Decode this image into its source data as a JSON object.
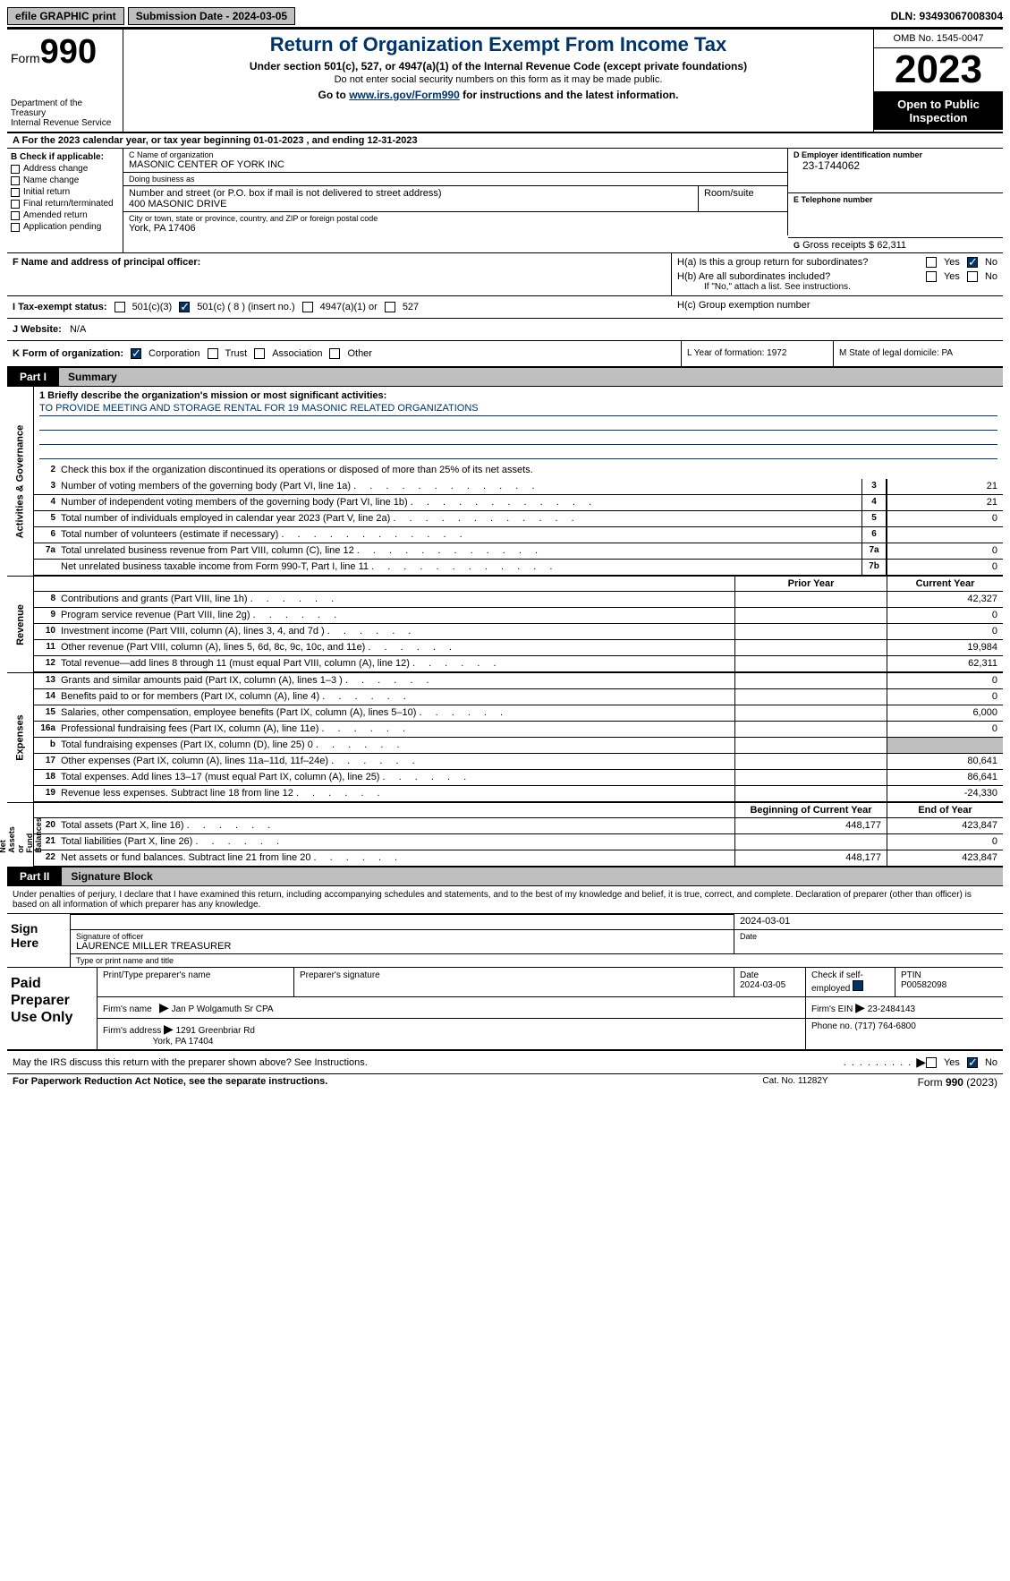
{
  "topbar": {
    "efile": "efile GRAPHIC print",
    "submission": "Submission Date - 2024-03-05",
    "dln": "DLN: 93493067008304"
  },
  "header": {
    "form_prefix": "Form",
    "form_number": "990",
    "dept": "Department of the Treasury\nInternal Revenue Service",
    "title": "Return of Organization Exempt From Income Tax",
    "sub": "Under section 501(c), 527, or 4947(a)(1) of the Internal Revenue Code (except private foundations)",
    "sub2": "Do not enter social security numbers on this form as it may be made public.",
    "sub3_pre": "Go to ",
    "sub3_link": "www.irs.gov/Form990",
    "sub3_post": " for instructions and the latest information.",
    "omb": "OMB No. 1545-0047",
    "year": "2023",
    "open": "Open to Public Inspection"
  },
  "sectionA": "A For the 2023 calendar year, or tax year beginning 01-01-2023    , and ending 12-31-2023",
  "sectionB": {
    "label": "B Check if applicable:",
    "items": [
      "Address change",
      "Name change",
      "Initial return",
      "Final return/terminated",
      "Amended return",
      "Application pending"
    ]
  },
  "sectionC": {
    "name_label": "C Name of organization",
    "name": "MASONIC CENTER OF YORK INC",
    "dba_label": "Doing business as",
    "dba": "",
    "street_label": "Number and street (or P.O. box if mail is not delivered to street address)",
    "street": "400 MASONIC DRIVE",
    "room_label": "Room/suite",
    "city_label": "City or town, state or province, country, and ZIP or foreign postal code",
    "city": "York, PA   17406"
  },
  "sectionD": {
    "label": "D Employer identification number",
    "value": "23-1744062"
  },
  "sectionE": {
    "label": "E Telephone number",
    "value": ""
  },
  "sectionG": {
    "label": "G",
    "text": "Gross receipts $ 62,311"
  },
  "sectionF": {
    "label": "F  Name and address of principal officer:",
    "value": ""
  },
  "sectionH": {
    "a": "H(a)  Is this a group return for subordinates?",
    "b": "H(b)  Are all subordinates included?",
    "b_note": "If \"No,\" attach a list. See instructions.",
    "c": "H(c)  Group exemption number"
  },
  "sectionI": {
    "label": "I   Tax-exempt status:",
    "opts": [
      "501(c)(3)",
      "501(c) ( 8 ) (insert no.)",
      "4947(a)(1) or",
      "527"
    ]
  },
  "sectionJ": {
    "label": "J   Website:",
    "value": "N/A"
  },
  "sectionK": {
    "label": "K Form of organization:",
    "opts": [
      "Corporation",
      "Trust",
      "Association",
      "Other"
    ]
  },
  "sectionL": "L Year of formation: 1972",
  "sectionM": "M State of legal domicile: PA",
  "part1": {
    "tab": "Part I",
    "title": "Summary"
  },
  "mission": {
    "q": "1   Briefly describe the organization's mission or most significant activities:",
    "text": "TO PROVIDE MEETING AND STORAGE RENTAL FOR 19 MASONIC RELATED ORGANIZATIONS"
  },
  "line2": "Check this box      if the organization discontinued its operations or disposed of more than 25% of its net assets.",
  "governance": [
    {
      "n": "3",
      "d": "Number of voting members of the governing body (Part VI, line 1a)",
      "b": "3",
      "v": "21"
    },
    {
      "n": "4",
      "d": "Number of independent voting members of the governing body (Part VI, line 1b)",
      "b": "4",
      "v": "21"
    },
    {
      "n": "5",
      "d": "Total number of individuals employed in calendar year 2023 (Part V, line 2a)",
      "b": "5",
      "v": "0"
    },
    {
      "n": "6",
      "d": "Total number of volunteers (estimate if necessary)",
      "b": "6",
      "v": ""
    },
    {
      "n": "7a",
      "d": "Total unrelated business revenue from Part VIII, column (C), line 12",
      "b": "7a",
      "v": "0"
    },
    {
      "n": "",
      "d": "Net unrelated business taxable income from Form 990-T, Part I, line 11",
      "b": "7b",
      "v": "0"
    }
  ],
  "revenue_hdr": {
    "prior": "Prior Year",
    "curr": "Current Year"
  },
  "revenue": [
    {
      "n": "8",
      "d": "Contributions and grants (Part VIII, line 1h)",
      "p": "",
      "c": "42,327"
    },
    {
      "n": "9",
      "d": "Program service revenue (Part VIII, line 2g)",
      "p": "",
      "c": "0"
    },
    {
      "n": "10",
      "d": "Investment income (Part VIII, column (A), lines 3, 4, and 7d )",
      "p": "",
      "c": "0"
    },
    {
      "n": "11",
      "d": "Other revenue (Part VIII, column (A), lines 5, 6d, 8c, 9c, 10c, and 11e)",
      "p": "",
      "c": "19,984"
    },
    {
      "n": "12",
      "d": "Total revenue—add lines 8 through 11 (must equal Part VIII, column (A), line 12)",
      "p": "",
      "c": "62,311"
    }
  ],
  "expenses": [
    {
      "n": "13",
      "d": "Grants and similar amounts paid (Part IX, column (A), lines 1–3 )",
      "p": "",
      "c": "0"
    },
    {
      "n": "14",
      "d": "Benefits paid to or for members (Part IX, column (A), line 4)",
      "p": "",
      "c": "0"
    },
    {
      "n": "15",
      "d": "Salaries, other compensation, employee benefits (Part IX, column (A), lines 5–10)",
      "p": "",
      "c": "6,000"
    },
    {
      "n": "16a",
      "d": "Professional fundraising fees (Part IX, column (A), line 11e)",
      "p": "",
      "c": "0"
    },
    {
      "n": "b",
      "d": "Total fundraising expenses (Part IX, column (D), line 25) 0",
      "p": "gray",
      "c": "gray"
    },
    {
      "n": "17",
      "d": "Other expenses (Part IX, column (A), lines 11a–11d, 11f–24e)",
      "p": "",
      "c": "80,641"
    },
    {
      "n": "18",
      "d": "Total expenses. Add lines 13–17 (must equal Part IX, column (A), line 25)",
      "p": "",
      "c": "86,641"
    },
    {
      "n": "19",
      "d": "Revenue less expenses. Subtract line 18 from line 12",
      "p": "",
      "c": "-24,330"
    }
  ],
  "netassets_hdr": {
    "prior": "Beginning of Current Year",
    "curr": "End of Year"
  },
  "netassets": [
    {
      "n": "20",
      "d": "Total assets (Part X, line 16)",
      "p": "448,177",
      "c": "423,847"
    },
    {
      "n": "21",
      "d": "Total liabilities (Part X, line 26)",
      "p": "",
      "c": "0"
    },
    {
      "n": "22",
      "d": "Net assets or fund balances. Subtract line 21 from line 20",
      "p": "448,177",
      "c": "423,847"
    }
  ],
  "part2": {
    "tab": "Part II",
    "title": "Signature Block"
  },
  "sig_intro": "Under penalties of perjury, I declare that I have examined this return, including accompanying schedules and statements, and to the best of my knowledge and belief, it is true, correct, and complete. Declaration of preparer (other than officer) is based on all information of which preparer has any knowledge.",
  "sign": {
    "label": "Sign Here",
    "date": "2024-03-01",
    "sig_label": "Signature of officer",
    "name": "LAURENCE MILLER  TREASURER",
    "name_label": "Type or print name and title",
    "date_label": "Date"
  },
  "paid": {
    "label": "Paid Preparer Use Only",
    "h1": "Print/Type preparer's name",
    "h2": "Preparer's signature",
    "h3_label": "Date",
    "h3": "2024-03-05",
    "h4": "Check        if self-employed",
    "h5_label": "PTIN",
    "h5": "P00582098",
    "firm_label": "Firm's name",
    "firm": "Jan P Wolgamuth Sr CPA",
    "ein_label": "Firm's EIN",
    "ein": "23-2484143",
    "addr_label": "Firm's address",
    "addr1": "1291 Greenbriar Rd",
    "addr2": "York, PA   17404",
    "phone_label": "Phone no.",
    "phone": "(717) 764-6800"
  },
  "discuss": "May the IRS discuss this return with the preparer shown above? See Instructions.",
  "footer": {
    "left": "For Paperwork Reduction Act Notice, see the separate instructions.",
    "mid": "Cat. No. 11282Y",
    "right_pre": "Form ",
    "right_b": "990",
    "right_post": " (2023)"
  },
  "yes": "Yes",
  "no": "No",
  "vtabs": {
    "gov": "Activities & Governance",
    "rev": "Revenue",
    "exp": "Expenses",
    "net": "Net Assets or\nFund Balances"
  }
}
